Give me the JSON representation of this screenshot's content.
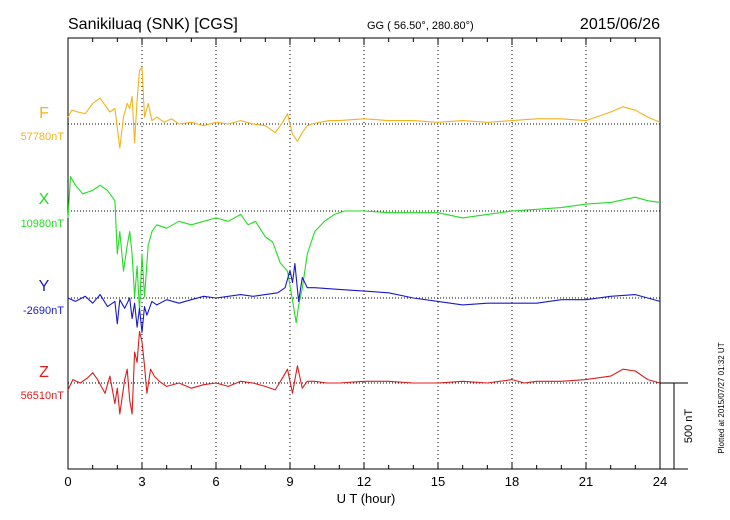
{
  "header": {
    "station": "Sanikiluaq (SNK)  [CGS]",
    "coords": "GG ( 56.50°, 280.80°)",
    "date": "2015/06/26"
  },
  "footer": {
    "plotted": "Plotted at 2015/07/27 01:32 UT",
    "scale_label": "500 nT"
  },
  "colors": {
    "F": "#f5b21a",
    "X": "#22dd22",
    "Y": "#1a1acc",
    "Z": "#e11b1b"
  },
  "chart_data": {
    "type": "line",
    "title": "",
    "xlabel": "U T (hour)",
    "xlim": [
      0,
      24
    ],
    "xticks": [
      "0",
      "3",
      "6",
      "9",
      "12",
      "15",
      "18",
      "21",
      "24"
    ],
    "scale_bar_nT": 500,
    "series": [
      {
        "name": "F",
        "baseline_label": "57780nT",
        "baseline_nT": 57780,
        "x": [
          0,
          0.15,
          0.4,
          0.7,
          1.0,
          1.3,
          1.7,
          1.9,
          2.0,
          2.1,
          2.25,
          2.4,
          2.5,
          2.6,
          2.7,
          2.8,
          2.9,
          3.0,
          3.1,
          3.25,
          3.4,
          3.6,
          3.9,
          4.2,
          4.5,
          5.0,
          5.5,
          6.0,
          6.5,
          7.0,
          7.5,
          8.0,
          8.4,
          8.7,
          8.9,
          9.1,
          9.3,
          9.5,
          9.7,
          9.9,
          10.2,
          10.6,
          11.0,
          12.0,
          13.0,
          14.0,
          15.0,
          16.0,
          17.0,
          18.0,
          19.0,
          20.0,
          21.0,
          22.0,
          22.5,
          23.0,
          23.5,
          24.0
        ],
        "values": [
          40,
          80,
          70,
          60,
          120,
          150,
          70,
          90,
          -20,
          -140,
          40,
          120,
          90,
          160,
          -110,
          140,
          310,
          330,
          40,
          120,
          20,
          40,
          10,
          30,
          0,
          10,
          -10,
          10,
          0,
          20,
          0,
          -10,
          -50,
          10,
          60,
          -60,
          -100,
          -50,
          -10,
          0,
          10,
          20,
          20,
          30,
          20,
          20,
          10,
          20,
          10,
          20,
          30,
          30,
          20,
          70,
          100,
          80,
          40,
          10
        ]
      },
      {
        "name": "X",
        "baseline_label": "10980nT",
        "baseline_nT": 10980,
        "x": [
          0,
          0.1,
          0.3,
          0.6,
          1.0,
          1.3,
          1.6,
          1.9,
          2.0,
          2.1,
          2.25,
          2.4,
          2.5,
          2.6,
          2.7,
          2.8,
          2.9,
          3.0,
          3.1,
          3.25,
          3.4,
          3.6,
          4.0,
          4.5,
          5.0,
          5.5,
          6.0,
          6.5,
          7.0,
          7.3,
          7.6,
          8.0,
          8.3,
          8.6,
          8.9,
          9.1,
          9.25,
          9.35,
          9.5,
          9.7,
          10.0,
          10.4,
          10.8,
          11.2,
          12.0,
          13.0,
          14.0,
          15.0,
          16.0,
          17.0,
          18.0,
          19.0,
          20.0,
          21.0,
          22.0,
          23.0,
          23.5,
          24.0
        ],
        "values": [
          -40,
          200,
          150,
          100,
          120,
          150,
          120,
          60,
          -250,
          -120,
          -350,
          -200,
          -120,
          -250,
          -500,
          -320,
          -580,
          -250,
          -500,
          -200,
          -120,
          -80,
          -100,
          -60,
          -80,
          -60,
          -40,
          -60,
          -20,
          -80,
          -60,
          -150,
          -180,
          -300,
          -350,
          -520,
          -650,
          -550,
          -450,
          -250,
          -120,
          -60,
          -20,
          0,
          0,
          -10,
          -10,
          -10,
          -40,
          -20,
          0,
          10,
          20,
          40,
          50,
          80,
          60,
          50
        ]
      },
      {
        "name": "Y",
        "baseline_label": "-2690nT",
        "baseline_nT": -2690,
        "x": [
          0,
          0.3,
          0.7,
          1.0,
          1.3,
          1.6,
          1.9,
          2.0,
          2.1,
          2.3,
          2.5,
          2.6,
          2.7,
          2.8,
          2.9,
          3.0,
          3.1,
          3.2,
          3.4,
          3.6,
          4.0,
          4.5,
          5.0,
          5.5,
          6.0,
          6.5,
          7.0,
          7.5,
          8.0,
          8.5,
          8.8,
          9.0,
          9.1,
          9.2,
          9.35,
          9.5,
          9.7,
          10.0,
          11.0,
          12.0,
          13.0,
          14.0,
          15.0,
          16.0,
          17.0,
          18.0,
          19.0,
          20.0,
          21.0,
          22.0,
          23.0,
          23.5,
          24.0
        ],
        "values": [
          0,
          -20,
          10,
          -30,
          20,
          -50,
          -20,
          -150,
          -10,
          -60,
          0,
          -120,
          -30,
          -170,
          -60,
          -200,
          -50,
          -100,
          -20,
          -40,
          -10,
          -30,
          -10,
          10,
          0,
          10,
          20,
          10,
          20,
          30,
          60,
          160,
          90,
          200,
          -20,
          120,
          60,
          60,
          50,
          40,
          30,
          0,
          -20,
          -40,
          -30,
          -30,
          -30,
          -10,
          -10,
          10,
          20,
          0,
          -20
        ]
      },
      {
        "name": "Z",
        "baseline_label": "56510nT",
        "baseline_nT": 56510,
        "x": [
          0,
          0.2,
          0.5,
          0.8,
          1.0,
          1.2,
          1.5,
          1.7,
          1.9,
          2.0,
          2.1,
          2.3,
          2.4,
          2.5,
          2.6,
          2.7,
          2.8,
          2.9,
          3.0,
          3.1,
          3.2,
          3.35,
          3.5,
          3.7,
          4.0,
          4.5,
          5.0,
          5.5,
          6.0,
          6.5,
          7.0,
          7.5,
          8.0,
          8.4,
          8.7,
          8.9,
          9.1,
          9.3,
          9.5,
          9.7,
          10.0,
          10.5,
          11.0,
          12.0,
          13.0,
          14.0,
          15.0,
          16.0,
          17.0,
          18.0,
          18.5,
          19.0,
          20.0,
          21.0,
          22.0,
          22.5,
          23.0,
          23.5,
          24.0
        ],
        "values": [
          -40,
          20,
          0,
          30,
          60,
          20,
          -60,
          40,
          -120,
          -30,
          -180,
          20,
          80,
          -100,
          -180,
          180,
          120,
          300,
          240,
          100,
          -60,
          80,
          40,
          10,
          -20,
          0,
          -30,
          -10,
          0,
          -20,
          10,
          0,
          -20,
          -40,
          30,
          80,
          -60,
          100,
          -30,
          10,
          10,
          0,
          0,
          10,
          10,
          0,
          0,
          10,
          0,
          20,
          0,
          10,
          10,
          20,
          40,
          80,
          70,
          20,
          0
        ]
      }
    ]
  }
}
